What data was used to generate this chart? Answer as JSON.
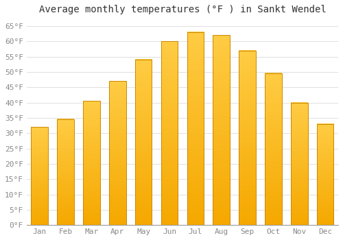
{
  "title": "Average monthly temperatures (°F ) in Sankt Wendel",
  "months": [
    "Jan",
    "Feb",
    "Mar",
    "Apr",
    "May",
    "Jun",
    "Jul",
    "Aug",
    "Sep",
    "Oct",
    "Nov",
    "Dec"
  ],
  "values": [
    32,
    34.5,
    40.5,
    47,
    54,
    60,
    63,
    62,
    57,
    49.5,
    40,
    33
  ],
  "bar_color_bottom": "#F5A800",
  "bar_color_top": "#FFCC44",
  "bar_edge_color": "#CC8800",
  "ylim": [
    0,
    67
  ],
  "yticks": [
    0,
    5,
    10,
    15,
    20,
    25,
    30,
    35,
    40,
    45,
    50,
    55,
    60,
    65
  ],
  "ytick_labels": [
    "0°F",
    "5°F",
    "10°F",
    "15°F",
    "20°F",
    "25°F",
    "30°F",
    "35°F",
    "40°F",
    "45°F",
    "50°F",
    "55°F",
    "60°F",
    "65°F"
  ],
  "title_fontsize": 10,
  "tick_fontsize": 8,
  "background_color": "#ffffff",
  "grid_color": "#e0e0e0"
}
